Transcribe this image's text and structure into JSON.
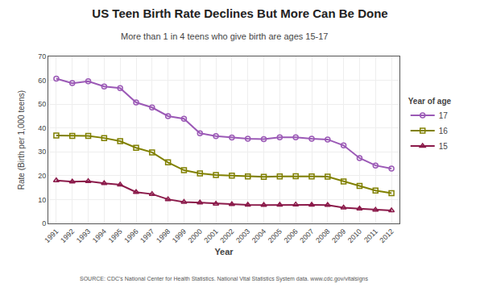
{
  "chart_data": {
    "type": "line",
    "title": "US Teen Birth Rate Declines But More Can Be Done",
    "subtitle": "More than 1 in 4 teens who give birth are ages 15-17",
    "x_label": "Year",
    "y_label": "Rate (Birth per 1,000 teens)",
    "annotations": [
      "SOURCE: CDC's National Center for Health Statistics. National Vital Statistics System data. www.cdc.gov/vitalsigns"
    ],
    "legend_title": "Year of age",
    "x": [
      1991,
      1992,
      1993,
      1994,
      1995,
      1996,
      1997,
      1998,
      1999,
      2000,
      2001,
      2002,
      2003,
      2004,
      2005,
      2006,
      2007,
      2008,
      2009,
      2010,
      2011,
      2012
    ],
    "series": [
      {
        "name": "17",
        "color": "#9B59B6",
        "marker": "circle",
        "values": [
          60.7,
          58.8,
          59.6,
          57.4,
          56.7,
          50.7,
          48.6,
          45.0,
          43.9,
          37.8,
          36.6,
          36.0,
          35.5,
          35.3,
          36.1,
          36.1,
          35.5,
          35.2,
          32.7,
          27.4,
          24.3,
          23.0
        ]
      },
      {
        "name": "16",
        "color": "#808000",
        "marker": "square",
        "values": [
          36.9,
          36.7,
          36.7,
          35.8,
          34.5,
          31.7,
          29.8,
          25.6,
          22.3,
          21.0,
          20.3,
          20.0,
          19.7,
          19.5,
          19.7,
          19.8,
          19.7,
          19.6,
          17.6,
          15.7,
          13.8,
          12.7
        ]
      },
      {
        "name": "15",
        "color": "#8B1A4A",
        "marker": "triangle",
        "values": [
          18.0,
          17.5,
          17.7,
          16.8,
          16.2,
          13.1,
          12.3,
          10.1,
          9.0,
          8.7,
          8.2,
          8.0,
          7.8,
          7.7,
          7.8,
          7.9,
          7.8,
          7.7,
          6.6,
          6.2,
          5.7,
          5.4
        ]
      }
    ],
    "xlim": [
      1990.5,
      2012.5
    ],
    "xticks": [
      1991,
      1992,
      1993,
      1994,
      1995,
      1996,
      1997,
      1998,
      1999,
      2000,
      2001,
      2002,
      2003,
      2004,
      2005,
      2006,
      2007,
      2008,
      2009,
      2010,
      2011,
      2012
    ],
    "ylim": [
      0,
      70
    ],
    "yticks": [
      0,
      10,
      20,
      30,
      40,
      50,
      60,
      70
    ],
    "grid": true,
    "legend": "right"
  }
}
